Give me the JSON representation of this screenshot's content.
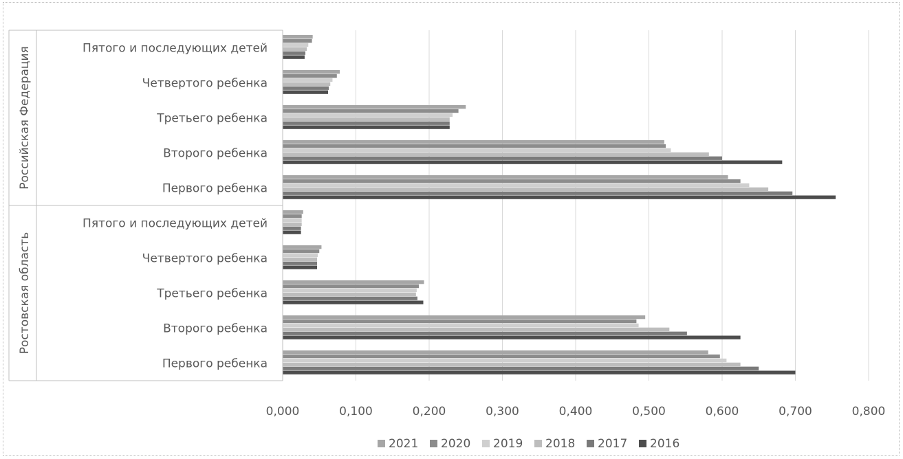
{
  "chart_data": {
    "type": "bar",
    "orientation": "horizontal",
    "title": "",
    "xlabel": "",
    "ylabel": "",
    "xlim": [
      0,
      0.8
    ],
    "x_ticks": [
      "0,000",
      "0,100",
      "0,200",
      "0,300",
      "0,400",
      "0,500",
      "0,600",
      "0,700",
      "0,800"
    ],
    "grid": "vertical",
    "legend_position": "bottom",
    "groups": [
      {
        "name": "Российская Федерация",
        "categories": [
          "Пятого и последующих детей",
          "Четвертого ребенка",
          "Третьего ребенка",
          "Второго ребенка",
          "Первого ребенка"
        ]
      },
      {
        "name": "Ростовская область",
        "categories": [
          "Пятого и последующих детей",
          "Четвертого ребенка",
          "Третьего ребенка",
          "Второго ребенка",
          "Первого ребенка"
        ]
      }
    ],
    "series": [
      {
        "name": "2021",
        "color": "#a6a6a6",
        "values": [
          [
            0.041,
            0.078,
            0.25,
            0.521,
            0.608
          ],
          [
            0.028,
            0.053,
            0.193,
            0.495,
            0.581
          ]
        ]
      },
      {
        "name": "2020",
        "color": "#8c8c8c",
        "values": [
          [
            0.04,
            0.074,
            0.24,
            0.523,
            0.625
          ],
          [
            0.026,
            0.05,
            0.186,
            0.483,
            0.597
          ]
        ]
      },
      {
        "name": "2019",
        "color": "#cfcfcf",
        "values": [
          [
            0.035,
            0.068,
            0.232,
            0.53,
            0.637
          ],
          [
            0.026,
            0.048,
            0.183,
            0.486,
            0.606
          ]
        ]
      },
      {
        "name": "2018",
        "color": "#bdbdbd",
        "values": [
          [
            0.033,
            0.065,
            0.228,
            0.582,
            0.663
          ],
          [
            0.026,
            0.047,
            0.182,
            0.528,
            0.625
          ]
        ]
      },
      {
        "name": "2017",
        "color": "#7a7a7a",
        "values": [
          [
            0.031,
            0.063,
            0.228,
            0.6,
            0.696
          ],
          [
            0.025,
            0.047,
            0.184,
            0.552,
            0.65
          ]
        ]
      },
      {
        "name": "2016",
        "color": "#4d4d4d",
        "values": [
          [
            0.03,
            0.062,
            0.228,
            0.682,
            0.755
          ],
          [
            0.025,
            0.047,
            0.192,
            0.625,
            0.7
          ]
        ]
      }
    ]
  }
}
